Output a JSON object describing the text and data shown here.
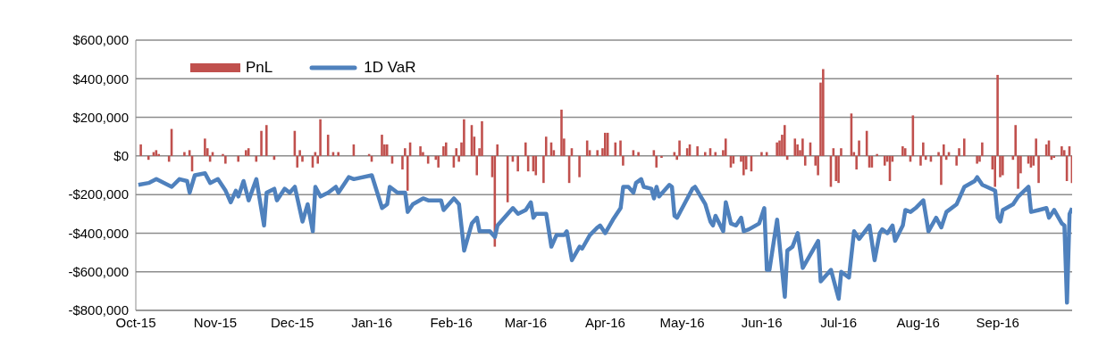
{
  "chart_data": {
    "type": "bar",
    "legend": "top left",
    "grid": "y",
    "ylim": [
      -800000,
      600000
    ],
    "yticks": [
      {
        "value": -800000,
        "label": "-$800,000"
      },
      {
        "value": -600000,
        "label": "-$600,000"
      },
      {
        "value": -400000,
        "label": "-$400,000"
      },
      {
        "value": -200000,
        "label": "-$200,000"
      },
      {
        "value": 0,
        "label": "$0"
      },
      {
        "value": 200000,
        "label": "$200,000"
      },
      {
        "value": 400000,
        "label": "$400,000"
      },
      {
        "value": 600000,
        "label": "$600,000"
      }
    ],
    "xlim": [
      "2015-10-01",
      "2016-09-30"
    ],
    "xticks": [
      {
        "value": "2015-10-01",
        "label": "Oct-15"
      },
      {
        "value": "2015-11-01",
        "label": "Nov-15"
      },
      {
        "value": "2015-12-01",
        "label": "Dec-15"
      },
      {
        "value": "2016-01-01",
        "label": "Jan-16"
      },
      {
        "value": "2016-02-01",
        "label": "Feb-16"
      },
      {
        "value": "2016-03-01",
        "label": "Mar-16"
      },
      {
        "value": "2016-04-01",
        "label": "Apr-16"
      },
      {
        "value": "2016-05-01",
        "label": "May-16"
      },
      {
        "value": "2016-06-01",
        "label": "Jun-16"
      },
      {
        "value": "2016-07-01",
        "label": "Jul-16"
      },
      {
        "value": "2016-08-01",
        "label": "Aug-16"
      },
      {
        "value": "2016-09-01",
        "label": "Sep-16"
      }
    ],
    "series": [
      {
        "name": "PnL",
        "color": "#c0504d",
        "x": [
          "2015-10-03",
          "2015-10-06",
          "2015-10-08",
          "2015-10-09",
          "2015-10-10",
          "2015-10-14",
          "2015-10-15",
          "2015-10-20",
          "2015-10-22",
          "2015-10-23",
          "2015-10-28",
          "2015-10-29",
          "2015-10-30",
          "2015-10-31",
          "2015-11-04",
          "2015-11-05",
          "2015-11-10",
          "2015-11-13",
          "2015-11-14",
          "2015-11-17",
          "2015-11-19",
          "2015-11-21",
          "2015-11-24",
          "2015-12-02",
          "2015-12-03",
          "2015-12-04",
          "2015-12-05",
          "2015-12-09",
          "2015-12-10",
          "2015-12-11",
          "2015-12-12",
          "2015-12-15",
          "2015-12-17",
          "2015-12-19",
          "2015-12-25",
          "2015-12-31",
          "2016-01-01",
          "2016-01-05",
          "2016-01-06",
          "2016-01-07",
          "2016-01-09",
          "2016-01-13",
          "2016-01-14",
          "2016-01-15",
          "2016-01-16",
          "2016-01-20",
          "2016-01-21",
          "2016-01-23",
          "2016-01-26",
          "2016-01-27",
          "2016-01-29",
          "2016-01-30",
          "2016-02-02",
          "2016-02-03",
          "2016-02-04",
          "2016-02-05",
          "2016-02-06",
          "2016-02-09",
          "2016-02-10",
          "2016-02-11",
          "2016-02-12",
          "2016-02-13",
          "2016-02-17",
          "2016-02-18",
          "2016-02-19",
          "2016-02-23",
          "2016-02-25",
          "2016-02-27",
          "2016-03-01",
          "2016-03-02",
          "2016-03-04",
          "2016-03-05",
          "2016-03-08",
          "2016-03-09",
          "2016-03-11",
          "2016-03-12",
          "2016-03-15",
          "2016-03-16",
          "2016-03-18",
          "2016-03-19",
          "2016-03-22",
          "2016-03-25",
          "2016-03-26",
          "2016-03-29",
          "2016-03-31",
          "2016-04-01",
          "2016-04-02",
          "2016-04-05",
          "2016-04-07",
          "2016-04-08",
          "2016-04-12",
          "2016-04-14",
          "2016-04-20",
          "2016-04-21",
          "2016-04-23",
          "2016-04-28",
          "2016-04-29",
          "2016-04-30",
          "2016-05-03",
          "2016-05-04",
          "2016-05-07",
          "2016-05-10",
          "2016-05-12",
          "2016-05-14",
          "2016-05-17",
          "2016-05-18",
          "2016-05-20",
          "2016-05-21",
          "2016-05-24",
          "2016-05-25",
          "2016-05-26",
          "2016-05-28",
          "2016-06-01",
          "2016-06-03",
          "2016-06-07",
          "2016-06-08",
          "2016-06-09",
          "2016-06-10",
          "2016-06-11",
          "2016-06-14",
          "2016-06-15",
          "2016-06-16",
          "2016-06-17",
          "2016-06-18",
          "2016-06-20",
          "2016-06-22",
          "2016-06-23",
          "2016-06-24",
          "2016-06-25",
          "2016-06-28",
          "2016-06-29",
          "2016-06-30",
          "2016-07-01",
          "2016-07-02",
          "2016-07-06",
          "2016-07-07",
          "2016-07-08",
          "2016-07-09",
          "2016-07-12",
          "2016-07-13",
          "2016-07-14",
          "2016-07-16",
          "2016-07-19",
          "2016-07-20",
          "2016-07-21",
          "2016-07-22",
          "2016-07-26",
          "2016-07-27",
          "2016-07-29",
          "2016-07-30",
          "2016-08-02",
          "2016-08-03",
          "2016-08-04",
          "2016-08-06",
          "2016-08-09",
          "2016-08-10",
          "2016-08-11",
          "2016-08-12",
          "2016-08-13",
          "2016-08-16",
          "2016-08-17",
          "2016-08-19",
          "2016-08-24",
          "2016-08-25",
          "2016-08-26",
          "2016-08-30",
          "2016-08-31",
          "2016-09-01",
          "2016-09-02",
          "2016-09-03",
          "2016-09-07",
          "2016-09-08",
          "2016-09-09",
          "2016-09-10",
          "2016-09-13",
          "2016-09-14",
          "2016-09-15",
          "2016-09-16",
          "2016-09-17",
          "2016-09-20",
          "2016-09-21",
          "2016-09-22",
          "2016-09-23",
          "2016-09-26",
          "2016-09-27",
          "2016-09-28",
          "2016-09-29",
          "2016-09-30"
        ],
        "values": [
          60000,
          -20000,
          20000,
          30000,
          10000,
          -30000,
          140000,
          20000,
          30000,
          -80000,
          90000,
          40000,
          -30000,
          20000,
          10000,
          -40000,
          -30000,
          30000,
          40000,
          -30000,
          130000,
          160000,
          -20000,
          130000,
          -60000,
          30000,
          -30000,
          -60000,
          20000,
          -40000,
          190000,
          110000,
          20000,
          20000,
          60000,
          10000,
          -30000,
          110000,
          60000,
          60000,
          -40000,
          -70000,
          40000,
          -180000,
          70000,
          50000,
          20000,
          -40000,
          -20000,
          -60000,
          50000,
          70000,
          -60000,
          40000,
          -30000,
          70000,
          190000,
          160000,
          100000,
          -100000,
          40000,
          180000,
          -110000,
          -470000,
          60000,
          -240000,
          -30000,
          -80000,
          70000,
          -80000,
          -80000,
          -100000,
          -140000,
          100000,
          70000,
          30000,
          240000,
          90000,
          -140000,
          40000,
          -110000,
          80000,
          30000,
          30000,
          40000,
          120000,
          120000,
          70000,
          80000,
          -50000,
          30000,
          20000,
          30000,
          -60000,
          -10000,
          20000,
          -20000,
          80000,
          40000,
          60000,
          50000,
          20000,
          40000,
          20000,
          30000,
          90000,
          -60000,
          -40000,
          -30000,
          -100000,
          -70000,
          -80000,
          20000,
          20000,
          70000,
          80000,
          110000,
          160000,
          -20000,
          90000,
          60000,
          30000,
          90000,
          -50000,
          70000,
          -50000,
          -100000,
          380000,
          450000,
          -160000,
          40000,
          -130000,
          -140000,
          40000,
          220000,
          20000,
          -70000,
          80000,
          130000,
          -60000,
          -60000,
          10000,
          -50000,
          -30000,
          -130000,
          -30000,
          50000,
          40000,
          -30000,
          210000,
          -50000,
          70000,
          -20000,
          -30000,
          20000,
          -150000,
          60000,
          -20000,
          20000,
          -50000,
          40000,
          90000,
          -40000,
          -30000,
          70000,
          -70000,
          -160000,
          420000,
          -110000,
          -100000,
          -20000,
          160000,
          -170000,
          -90000,
          -40000,
          -60000,
          -50000,
          90000,
          -140000,
          60000,
          80000,
          -20000,
          -10000,
          50000,
          30000,
          -130000,
          50000,
          -140000
        ]
      },
      {
        "name": "1D VaR",
        "type": "line",
        "color": "#4f81bd",
        "x": [
          "2015-10-02",
          "2015-10-06",
          "2015-10-09",
          "2015-10-15",
          "2015-10-18",
          "2015-10-21",
          "2015-10-22",
          "2015-10-24",
          "2015-10-28",
          "2015-10-30",
          "2015-11-02",
          "2015-11-05",
          "2015-11-07",
          "2015-11-09",
          "2015-11-10",
          "2015-11-12",
          "2015-11-14",
          "2015-11-17",
          "2015-11-20",
          "2015-11-21",
          "2015-11-24",
          "2015-11-25",
          "2015-11-28",
          "2015-11-30",
          "2015-12-02",
          "2015-12-05",
          "2015-12-07",
          "2015-12-09",
          "2015-12-10",
          "2015-12-12",
          "2015-12-15",
          "2015-12-18",
          "2015-12-19",
          "2015-12-23",
          "2015-12-25",
          "2016-01-01",
          "2016-01-05",
          "2016-01-07",
          "2016-01-08",
          "2016-01-11",
          "2016-01-14",
          "2016-01-15",
          "2016-01-17",
          "2016-01-21",
          "2016-01-23",
          "2016-01-28",
          "2016-01-29",
          "2016-02-02",
          "2016-02-04",
          "2016-02-06",
          "2016-02-09",
          "2016-02-11",
          "2016-02-12",
          "2016-02-16",
          "2016-02-18",
          "2016-02-19",
          "2016-02-23",
          "2016-02-25",
          "2016-02-27",
          "2016-03-01",
          "2016-03-03",
          "2016-03-04",
          "2016-03-05",
          "2016-03-09",
          "2016-03-11",
          "2016-03-13",
          "2016-03-16",
          "2016-03-17",
          "2016-03-19",
          "2016-03-22",
          "2016-03-23",
          "2016-03-26",
          "2016-03-29",
          "2016-03-30",
          "2016-04-01",
          "2016-04-04",
          "2016-04-07",
          "2016-04-08",
          "2016-04-09",
          "2016-04-10",
          "2016-04-12",
          "2016-04-13",
          "2016-04-15",
          "2016-04-16",
          "2016-04-19",
          "2016-04-20",
          "2016-04-21",
          "2016-04-22",
          "2016-04-26",
          "2016-04-27",
          "2016-04-28",
          "2016-04-29",
          "2016-05-05",
          "2016-05-06",
          "2016-05-10",
          "2016-05-12",
          "2016-05-13",
          "2016-05-14",
          "2016-05-17",
          "2016-05-18",
          "2016-05-20",
          "2016-05-22",
          "2016-05-24",
          "2016-05-25",
          "2016-05-27",
          "2016-05-31",
          "2016-06-02",
          "2016-06-03",
          "2016-06-04",
          "2016-06-07",
          "2016-06-10",
          "2016-06-11",
          "2016-06-13",
          "2016-06-15",
          "2016-06-17",
          "2016-06-23",
          "2016-06-24",
          "2016-06-28",
          "2016-07-01",
          "2016-07-02",
          "2016-07-05",
          "2016-07-07",
          "2016-07-09",
          "2016-07-13",
          "2016-07-15",
          "2016-07-17",
          "2016-07-18",
          "2016-07-20",
          "2016-07-22",
          "2016-07-23",
          "2016-07-26",
          "2016-07-27",
          "2016-07-29",
          "2016-07-31",
          "2016-08-03",
          "2016-08-05",
          "2016-08-08",
          "2016-08-10",
          "2016-08-12",
          "2016-08-16",
          "2016-08-19",
          "2016-08-23",
          "2016-08-24",
          "2016-08-26",
          "2016-08-31",
          "2016-09-01",
          "2016-09-02",
          "2016-09-03",
          "2016-09-07",
          "2016-09-09",
          "2016-09-13",
          "2016-09-14",
          "2016-09-17",
          "2016-09-20",
          "2016-09-21",
          "2016-09-23",
          "2016-09-26",
          "2016-09-27",
          "2016-09-28",
          "2016-09-29",
          "2016-09-30"
        ],
        "values": [
          -150000,
          -140000,
          -120000,
          -160000,
          -120000,
          -130000,
          -190000,
          -100000,
          -90000,
          -140000,
          -120000,
          -180000,
          -240000,
          -180000,
          -210000,
          -130000,
          -230000,
          -120000,
          -360000,
          -190000,
          -170000,
          -230000,
          -170000,
          -190000,
          -160000,
          -340000,
          -250000,
          -390000,
          -160000,
          -210000,
          -190000,
          -160000,
          -190000,
          -110000,
          -120000,
          -100000,
          -270000,
          -250000,
          -160000,
          -190000,
          -190000,
          -290000,
          -250000,
          -220000,
          -230000,
          -230000,
          -280000,
          -220000,
          -250000,
          -490000,
          -350000,
          -320000,
          -390000,
          -390000,
          -420000,
          -360000,
          -300000,
          -270000,
          -300000,
          -280000,
          -240000,
          -320000,
          -300000,
          -300000,
          -470000,
          -410000,
          -410000,
          -390000,
          -540000,
          -470000,
          -480000,
          -410000,
          -370000,
          -360000,
          -400000,
          -330000,
          -270000,
          -160000,
          -160000,
          -160000,
          -190000,
          -140000,
          -120000,
          -160000,
          -170000,
          -220000,
          -160000,
          -210000,
          -150000,
          -160000,
          -310000,
          -320000,
          -170000,
          -160000,
          -250000,
          -340000,
          -360000,
          -310000,
          -390000,
          -240000,
          -350000,
          -360000,
          -320000,
          -390000,
          -380000,
          -350000,
          -270000,
          -590000,
          -590000,
          -330000,
          -730000,
          -490000,
          -470000,
          -400000,
          -580000,
          -440000,
          -650000,
          -590000,
          -740000,
          -600000,
          -630000,
          -390000,
          -430000,
          -360000,
          -540000,
          -400000,
          -380000,
          -400000,
          -360000,
          -440000,
          -360000,
          -280000,
          -290000,
          -270000,
          -230000,
          -390000,
          -320000,
          -370000,
          -290000,
          -250000,
          -160000,
          -130000,
          -110000,
          -150000,
          -180000,
          -320000,
          -340000,
          -280000,
          -250000,
          -210000,
          -160000,
          -290000,
          -280000,
          -270000,
          -320000,
          -280000,
          -350000,
          -360000,
          -760000,
          -300000,
          -270000
        ]
      }
    ]
  }
}
